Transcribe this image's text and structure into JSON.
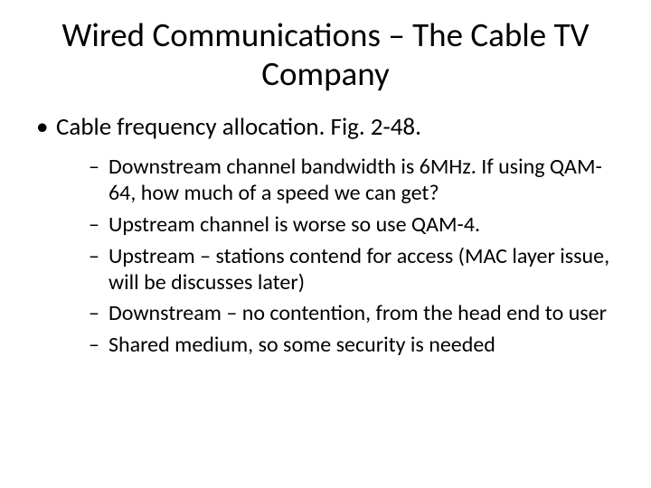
{
  "slide": {
    "title": "Wired Communications – The Cable TV Company",
    "bullet1": "Cable frequency allocation. Fig. 2-48.",
    "sub": {
      "s1": "Downstream channel bandwidth is 6MHz. If using QAM-64, how much of a speed we can get?",
      "s2": "Upstream channel is worse so use QAM-4.",
      "s3": "Upstream – stations contend for access (MAC layer issue, will be discusses later)",
      "s4": "Downstream – no contention, from the head end to user",
      "s5": "Shared medium, so some security is needed"
    }
  },
  "style": {
    "background_color": "#ffffff",
    "text_color": "#000000",
    "title_fontsize": 37,
    "level1_fontsize": 27,
    "level2_fontsize": 24,
    "font_family": "Calibri"
  }
}
